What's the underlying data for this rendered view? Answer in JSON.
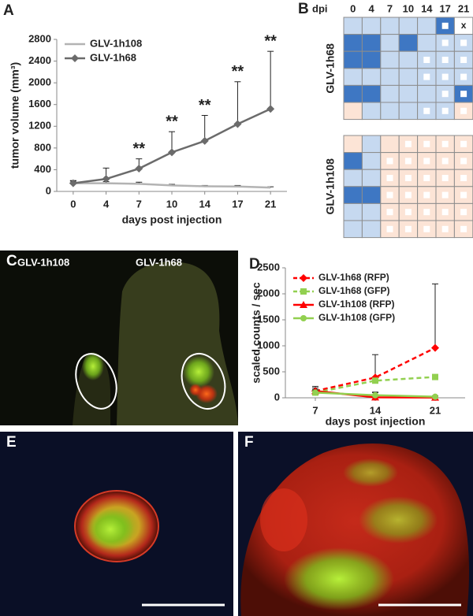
{
  "panel_labels": [
    "A",
    "B",
    "C",
    "D",
    "E",
    "F"
  ],
  "chart_data": [
    {
      "type": "line",
      "xlabel": "days post injection",
      "ylabel": "tumor volume (mm³)",
      "categories": [
        "0",
        "4",
        "7",
        "10",
        "14",
        "17",
        "21"
      ],
      "ylim": [
        0,
        2800
      ],
      "yticks": [
        0,
        400,
        800,
        1200,
        1600,
        2000,
        2400,
        2800
      ],
      "legend": "upper left",
      "annotations": [
        null,
        null,
        "**",
        "**",
        "**",
        "**",
        "**"
      ],
      "series": [
        {
          "name": "GLV-1h108",
          "color": "#b3b3b3",
          "marker": "none",
          "dash": false,
          "values": [
            150,
            150,
            140,
            110,
            95,
            90,
            70
          ],
          "errors": [
            40,
            30,
            30,
            20,
            15,
            20,
            15
          ]
        },
        {
          "name": "GLV-1h68",
          "color": "#6b6b6b",
          "marker": "diamond",
          "dash": false,
          "values": [
            150,
            230,
            420,
            720,
            930,
            1240,
            1520
          ],
          "errors": [
            50,
            200,
            180,
            380,
            470,
            780,
            1060
          ]
        }
      ]
    },
    {
      "type": "line",
      "xlabel": "days post injection",
      "ylabel": "scaled counts / sec",
      "categories": [
        "7",
        "14",
        "21"
      ],
      "ylim": [
        0,
        2500
      ],
      "yticks": [
        0,
        500,
        1000,
        1500,
        2000,
        2500
      ],
      "legend": "upper left",
      "series": [
        {
          "name": "GLV-1h68 (RFP)",
          "color": "#ff0000",
          "marker": "diamond",
          "dash": true,
          "values": [
            130,
            390,
            960
          ],
          "errors": [
            90,
            440,
            1230
          ]
        },
        {
          "name": "GLV-1h68 (GFP)",
          "color": "#92d050",
          "marker": "square",
          "dash": true,
          "values": [
            100,
            330,
            400
          ],
          "errors": [
            60,
            40,
            30
          ]
        },
        {
          "name": "GLV-1h108 (RFP)",
          "color": "#ff0000",
          "marker": "triangle",
          "dash": false,
          "values": [
            130,
            10,
            5
          ],
          "errors": [
            60,
            90,
            10
          ]
        },
        {
          "name": "GLV-1h108 (GFP)",
          "color": "#92d050",
          "marker": "circle",
          "dash": false,
          "values": [
            100,
            50,
            20
          ],
          "errors": [
            50,
            60,
            20
          ]
        }
      ]
    }
  ],
  "dpi_table": {
    "header": "dpi",
    "columns": [
      "0",
      "4",
      "7",
      "10",
      "14",
      "17",
      "21"
    ],
    "groups": [
      {
        "name": "GLV-1h68",
        "fills": [
          [
            "#c6d9f0",
            "#c6d9f0",
            "#c6d9f0",
            "#c6d9f0",
            "#c6d9f0",
            "#3e77c3",
            "#ffffff"
          ],
          [
            "#3e77c3",
            "#3e77c3",
            "#c6d9f0",
            "#3e77c3",
            "#c6d9f0",
            "#c6d9f0",
            "#c6d9f0"
          ],
          [
            "#3e77c3",
            "#3e77c3",
            "#c6d9f0",
            "#c6d9f0",
            "#c6d9f0",
            "#c6d9f0",
            "#c6d9f0"
          ],
          [
            "#c6d9f0",
            "#c6d9f0",
            "#c6d9f0",
            "#c6d9f0",
            "#c6d9f0",
            "#c6d9f0",
            "#c6d9f0"
          ],
          [
            "#3e77c3",
            "#3e77c3",
            "#c6d9f0",
            "#c6d9f0",
            "#c6d9f0",
            "#c6d9f0",
            "#3e77c3"
          ],
          [
            "#fce4d6",
            "#c6d9f0",
            "#c6d9f0",
            "#c6d9f0",
            "#c6d9f0",
            "#c6d9f0",
            "#fce4d6"
          ]
        ],
        "markers": [
          [
            null,
            null,
            null,
            null,
            null,
            true,
            "x"
          ],
          [
            null,
            null,
            null,
            null,
            null,
            true,
            true
          ],
          [
            null,
            null,
            null,
            null,
            true,
            true,
            true
          ],
          [
            null,
            null,
            null,
            null,
            true,
            true,
            true
          ],
          [
            null,
            null,
            null,
            null,
            null,
            true,
            true
          ],
          [
            null,
            null,
            null,
            null,
            true,
            true,
            true
          ]
        ]
      },
      {
        "name": "GLV-1h108",
        "fills": [
          [
            "#fce4d6",
            "#c6d9f0",
            "#fce4d6",
            "#fce4d6",
            "#fce4d6",
            "#fce4d6",
            "#fce4d6"
          ],
          [
            "#3e77c3",
            "#c6d9f0",
            "#fce4d6",
            "#fce4d6",
            "#fce4d6",
            "#fce4d6",
            "#fce4d6"
          ],
          [
            "#c6d9f0",
            "#c6d9f0",
            "#fce4d6",
            "#fce4d6",
            "#fce4d6",
            "#fce4d6",
            "#fce4d6"
          ],
          [
            "#3e77c3",
            "#3e77c3",
            "#fce4d6",
            "#fce4d6",
            "#fce4d6",
            "#fce4d6",
            "#fce4d6"
          ],
          [
            "#c6d9f0",
            "#c6d9f0",
            "#fce4d6",
            "#fce4d6",
            "#fce4d6",
            "#fce4d6",
            "#fce4d6"
          ],
          [
            "#c6d9f0",
            "#c6d9f0",
            "#fce4d6",
            "#fce4d6",
            "#fce4d6",
            "#fce4d6",
            "#fce4d6"
          ]
        ],
        "markers": [
          [
            null,
            null,
            null,
            true,
            true,
            true,
            true
          ],
          [
            null,
            null,
            true,
            true,
            true,
            true,
            true
          ],
          [
            null,
            null,
            true,
            true,
            true,
            true,
            true
          ],
          [
            null,
            null,
            true,
            true,
            true,
            true,
            true
          ],
          [
            null,
            null,
            true,
            true,
            true,
            true,
            true
          ],
          [
            null,
            null,
            true,
            true,
            true,
            true,
            true
          ]
        ]
      }
    ]
  },
  "image_c": {
    "labels": [
      "GLV-1h108",
      "GLV-1h68"
    ]
  }
}
